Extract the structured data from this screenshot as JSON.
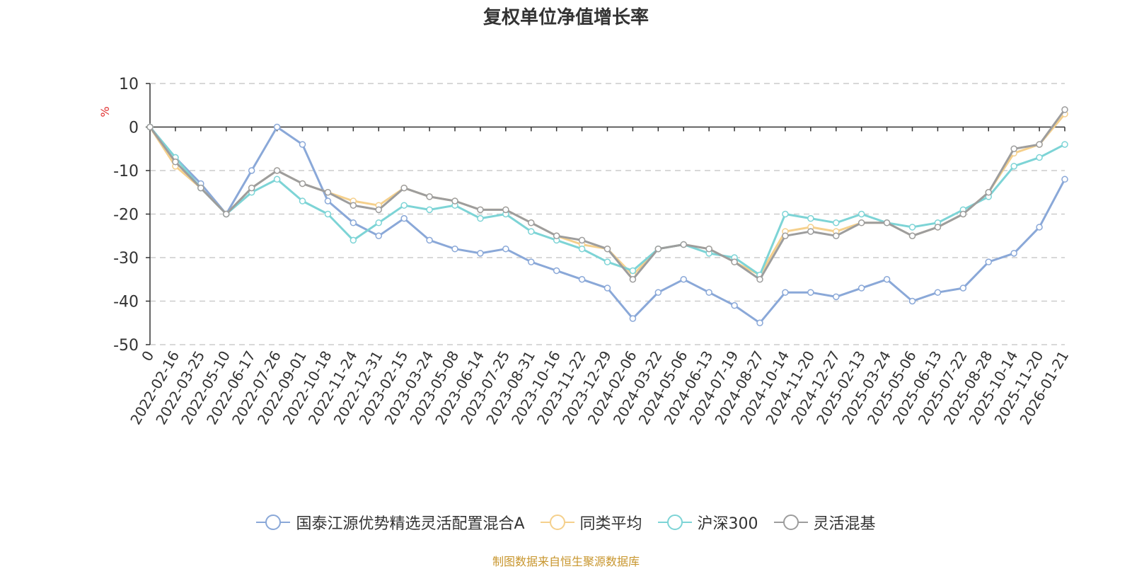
{
  "chart_data": {
    "type": "line",
    "title": "复权单位净值增长率",
    "ylabel": "%",
    "xlabel": "",
    "ylim": [
      -50,
      10
    ],
    "yticks": [
      "10",
      "0",
      "-10",
      "-20",
      "-30",
      "-40",
      "-50"
    ],
    "ytick_values": [
      10,
      0,
      -10,
      -20,
      -30,
      -40,
      -50
    ],
    "x_first_label": "0",
    "x_tick_labels": [
      "2022-02-16",
      "2022-03-25",
      "2022-05-10",
      "2022-06-17",
      "2022-07-26",
      "2022-09-01",
      "2022-10-18",
      "2022-11-24",
      "2022-12-31",
      "2023-02-15",
      "2023-03-24",
      "2023-05-08",
      "2023-06-14",
      "2023-07-25",
      "2023-08-31",
      "2023-10-16",
      "2023-11-22",
      "2023-12-29",
      "2024-02-06",
      "2024-03-22",
      "2024-05-06",
      "2024-06-13",
      "2024-07-19",
      "2024-08-27",
      "2024-10-14",
      "2024-11-20",
      "2024-12-27",
      "2025-02-13",
      "2025-03-24",
      "2025-05-06",
      "2025-06-13",
      "2025-07-22",
      "2025-08-28",
      "2025-10-14",
      "2025-11-20",
      "2026-01-21"
    ],
    "grid": "horizontal dashed",
    "legend_placement": "bottom-center",
    "x": [
      "0",
      "2022-02-16",
      "2022-03-25",
      "2022-05-10",
      "2022-06-17",
      "2022-07-26",
      "2022-09-01",
      "2022-10-18",
      "2022-11-24",
      "2022-12-31",
      "2023-02-15",
      "2023-03-24",
      "2023-05-08",
      "2023-06-14",
      "2023-07-25",
      "2023-08-31",
      "2023-10-16",
      "2023-11-22",
      "2023-12-29",
      "2024-02-06",
      "2024-03-22",
      "2024-05-06",
      "2024-06-13",
      "2024-07-19",
      "2024-08-27",
      "2024-10-14",
      "2024-11-20",
      "2024-12-27",
      "2025-02-13",
      "2025-03-24",
      "2025-05-06",
      "2025-06-13",
      "2025-07-22",
      "2025-08-28",
      "2025-10-14",
      "2025-11-20",
      "2026-01-21"
    ],
    "series": [
      {
        "name": "国泰江源优势精选灵活配置混合A",
        "color": "#8aa8d8",
        "values": [
          0,
          -7,
          -13,
          -20,
          -10,
          0,
          -4,
          -17,
          -22,
          -25,
          -21,
          -26,
          -28,
          -29,
          -28,
          -31,
          -33,
          -35,
          -37,
          -44,
          -38,
          -35,
          -38,
          -41,
          -45,
          -38,
          -38,
          -39,
          -37,
          -35,
          -40,
          -38,
          -37,
          -31,
          -29,
          -23,
          -12
        ]
      },
      {
        "name": "同类平均",
        "color": "#f5d08c",
        "values": [
          0,
          -9,
          -14,
          -20,
          -14,
          -10,
          -13,
          -15,
          -17,
          -18,
          -14,
          -16,
          -17,
          -19,
          -19,
          -22,
          -25,
          -27,
          -28,
          -34,
          -28,
          -27,
          -28,
          -31,
          -34,
          -24,
          -23,
          -24,
          -22,
          -22,
          -25,
          -23,
          -20,
          -15,
          -6,
          -4,
          3
        ]
      },
      {
        "name": "沪深300",
        "color": "#7dd4d6",
        "values": [
          0,
          -7,
          -14,
          -20,
          -15,
          -12,
          -17,
          -20,
          -26,
          -22,
          -18,
          -19,
          -18,
          -21,
          -20,
          -24,
          -26,
          -28,
          -31,
          -33,
          -28,
          -27,
          -29,
          -30,
          -34,
          -20,
          -21,
          -22,
          -20,
          -22,
          -23,
          -22,
          -19,
          -16,
          -9,
          -7,
          -4
        ]
      },
      {
        "name": "灵活混基",
        "color": "#9d9d9d",
        "values": [
          0,
          -8,
          -14,
          -20,
          -14,
          -10,
          -13,
          -15,
          -18,
          -19,
          -14,
          -16,
          -17,
          -19,
          -19,
          -22,
          -25,
          -26,
          -28,
          -35,
          -28,
          -27,
          -28,
          -31,
          -35,
          -25,
          -24,
          -25,
          -22,
          -22,
          -25,
          -23,
          -20,
          -15,
          -5,
          -4,
          4
        ]
      }
    ]
  },
  "footer": "制图数据来自恒生聚源数据库"
}
